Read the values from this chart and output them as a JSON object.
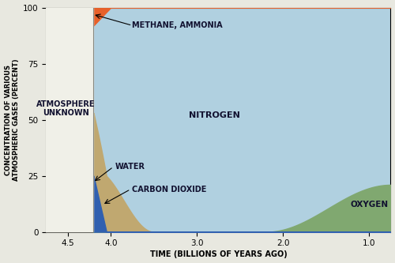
{
  "title": "",
  "xlabel": "TIME (BILLIONS OF YEARS AGO)",
  "ylabel": "CONCENTRATION OF VARIOUS\nATMOSPHERIC GASES (PERCENT)",
  "xlim": [
    4.75,
    0.75
  ],
  "ylim": [
    0,
    100
  ],
  "xticks": [
    4.5,
    4.0,
    3.0,
    2.0,
    1.0
  ],
  "yticks": [
    0,
    25,
    50,
    75,
    100
  ],
  "background_color": "#e8e8e0",
  "plot_bg_color": "#f0f0e8",
  "colors": {
    "methane": "#e8612a",
    "nitrogen": "#b0d0e0",
    "water": "#3060b0",
    "carbon_dioxide": "#c0a870",
    "oxygen": "#80a870"
  },
  "transition_x": 4.2,
  "labels": {
    "methane_text": "METHANE, AMMONIA",
    "methane_x": 3.75,
    "methane_y": 92,
    "nitrogen_text": "NITROGEN",
    "nitrogen_x": 2.8,
    "nitrogen_y": 52,
    "water_text": "WATER",
    "water_x": 3.95,
    "water_y": 29,
    "co2_text": "CARBON DIOXIDE",
    "co2_x": 3.75,
    "co2_y": 19,
    "oxygen_text": "OXYGEN",
    "oxygen_x": 1.0,
    "oxygen_y": 12,
    "unknown_text": "ATMOSPHERE\nUNKNOWN",
    "unknown_x": 4.52,
    "unknown_y": 55
  }
}
